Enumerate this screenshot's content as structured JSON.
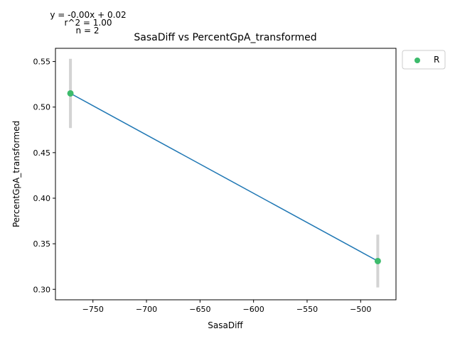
{
  "chart_data": {
    "type": "scatter",
    "title": "SasaDiff vs PercentGpA_transformed",
    "xlabel": "SasaDiff",
    "ylabel": "PercentGpA_transformed",
    "xlim": [
      -785,
      -467
    ],
    "ylim": [
      0.2885,
      0.5645
    ],
    "xticks": [
      -750,
      -700,
      -650,
      -600,
      -550,
      -500
    ],
    "xtick_labels": [
      "−750",
      "−700",
      "−650",
      "−600",
      "−550",
      "−500"
    ],
    "yticks": [
      0.3,
      0.35,
      0.4,
      0.45,
      0.5,
      0.55
    ],
    "ytick_labels": [
      "0.30",
      "0.35",
      "0.40",
      "0.45",
      "0.50",
      "0.55"
    ],
    "grid": false,
    "legend": {
      "placement": "outside-right-top",
      "entries": [
        {
          "label": "R",
          "color": "#3dbb6c"
        }
      ]
    },
    "annotations": {
      "equation": "y = -0.00x + 0.02",
      "r_squared": "r^2 = 1.00",
      "n": "n = 2"
    },
    "series": [
      {
        "name": "R",
        "points": [
          {
            "x": -771,
            "y": 0.515,
            "err_low": 0.477,
            "err_high": 0.553
          },
          {
            "x": -484,
            "y": 0.331,
            "err_low": 0.302,
            "err_high": 0.36
          }
        ]
      }
    ],
    "fit_line": {
      "x": [
        -771,
        -484
      ],
      "y": [
        0.515,
        0.331
      ]
    },
    "colors": {
      "marker": "#3dbb6c",
      "fit_line": "#1f77b4",
      "error_bar": "#d3d3d3",
      "axes": "#000000"
    }
  }
}
